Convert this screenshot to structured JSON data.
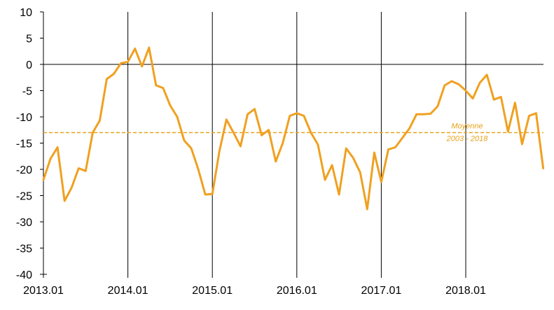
{
  "chart_data": {
    "type": "line",
    "title": "",
    "xlabel": "",
    "ylabel": "",
    "ylim": [
      -40,
      10
    ],
    "yticks": [
      10,
      5,
      0,
      -5,
      -10,
      -15,
      -20,
      -25,
      -30,
      -35,
      -40
    ],
    "xticks": [
      "2013.01",
      "2014.01",
      "2015.01",
      "2016.01",
      "2017.01",
      "2018.01"
    ],
    "grid": "vertical lines at each year",
    "legend": "none",
    "series": [
      {
        "color": "#F0A020",
        "start": "2013.01",
        "frequency": "monthly",
        "values": [
          -22,
          -18,
          -15.8,
          -26,
          -23.5,
          -19.8,
          -20.3,
          -13,
          -10.7,
          -2.8,
          -1.8,
          0.2,
          0.5,
          3,
          -0.4,
          3.2,
          -4,
          -4.5,
          -7.8,
          -10,
          -14.5,
          -16,
          -20,
          -24.8,
          -24.7,
          -16.5,
          -10.5,
          -13,
          -15.6,
          -9.5,
          -8.5,
          -13.5,
          -12.5,
          -18.5,
          -15,
          -9.8,
          -9.3,
          -9.8,
          -13,
          -15.3,
          -22,
          -19.2,
          -24.8,
          -16,
          -17.8,
          -20.6,
          -27.6,
          -16.8,
          -22.4,
          -16.2,
          -15.8,
          -14,
          -12.2,
          -9.5,
          -9.5,
          -9.4,
          -8,
          -4,
          -3.2,
          -3.8,
          -5,
          -6.5,
          -3.5,
          -2,
          -6.7,
          -6.2,
          -12.8,
          -7.3,
          -15.2,
          -9.8,
          -9.3,
          -19.8
        ]
      }
    ],
    "reference_line": {
      "value": -13,
      "color": "#E8A21A",
      "style": "dashed",
      "label_line1": "Moyenne",
      "label_line2": "2003 - 2018"
    }
  }
}
